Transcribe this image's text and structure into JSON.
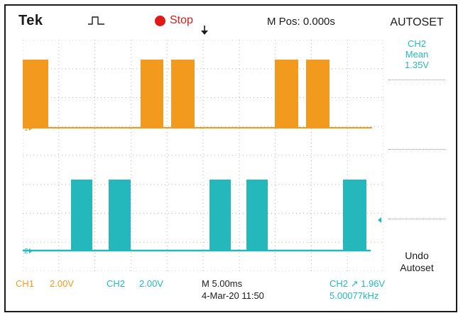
{
  "header": {
    "brand": "Tek",
    "trigger_icon": "pulse-trigger-icon",
    "run_state": "Stop",
    "m_pos": "M Pos: 0.000s"
  },
  "side_menu": {
    "title": "AUTOSET",
    "measure_channel": "CH2",
    "measure_type": "Mean",
    "measure_value": "1.35V",
    "undo_line1": "Undo",
    "undo_line2": "Autoset"
  },
  "channels": {
    "ch1": {
      "label": "CH1",
      "scale": "2.00V",
      "marker": "1",
      "color": "#f29a1e"
    },
    "ch2": {
      "label": "CH2",
      "scale": "2.00V",
      "marker": "2",
      "color": "#24b8bd"
    }
  },
  "footer": {
    "timebase": "M 5.00ms",
    "datetime": "4-Mar-20 11:50",
    "trigger": "CH2 ↗ 1.96V",
    "frequency": "5.00077kHz"
  },
  "colors": {
    "run_state": "#e01818",
    "graticule": "#b5b5b5",
    "frame": "#1a1a1a"
  }
}
